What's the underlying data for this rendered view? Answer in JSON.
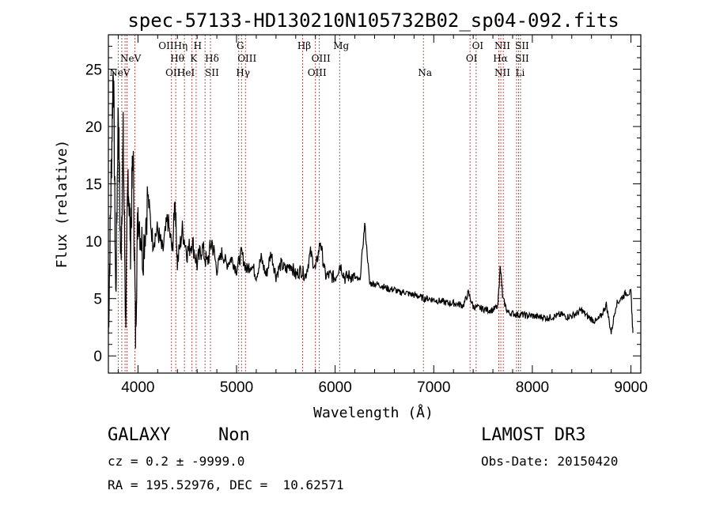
{
  "chart_data": {
    "type": "line",
    "title": "spec-57133-HD130210N105732B02_sp04-092.fits",
    "xlabel": "Wavelength (Å)",
    "ylabel": "Flux (relative)",
    "xlim": [
      3700,
      9100
    ],
    "ylim": [
      -1.5,
      28
    ],
    "xticks": [
      4000,
      5000,
      6000,
      7000,
      8000,
      9000
    ],
    "yticks": [
      0,
      5,
      10,
      15,
      20,
      25
    ],
    "grid": false,
    "series": [
      {
        "name": "flux",
        "x": [
          3700,
          3725,
          3750,
          3775,
          3800,
          3825,
          3850,
          3875,
          3900,
          3925,
          3950,
          3975,
          4000,
          4050,
          4100,
          4150,
          4200,
          4250,
          4300,
          4350,
          4375,
          4400,
          4450,
          4500,
          4550,
          4600,
          4650,
          4700,
          4750,
          4800,
          4850,
          4900,
          4950,
          5000,
          5050,
          5100,
          5150,
          5200,
          5250,
          5300,
          5350,
          5400,
          5450,
          5500,
          5550,
          5600,
          5650,
          5700,
          5750,
          5800,
          5850,
          5900,
          5950,
          6000,
          6050,
          6100,
          6150,
          6200,
          6250,
          6300,
          6350,
          6400,
          6450,
          6500,
          6550,
          6600,
          6650,
          6700,
          6750,
          6800,
          6850,
          6900,
          6950,
          7000,
          7050,
          7100,
          7150,
          7200,
          7250,
          7300,
          7350,
          7400,
          7450,
          7500,
          7550,
          7600,
          7650,
          7675,
          7700,
          7750,
          7800,
          7850,
          7900,
          7950,
          8000,
          8050,
          8100,
          8150,
          8200,
          8250,
          8300,
          8350,
          8400,
          8450,
          8500,
          8550,
          8600,
          8650,
          8700,
          8750,
          8800,
          8850,
          8900,
          8950,
          9000,
          9020
        ],
        "y": [
          2,
          14,
          26,
          5,
          22,
          8,
          19,
          3,
          16,
          10,
          18,
          2,
          13,
          9,
          14,
          10,
          11,
          9,
          12,
          9,
          14,
          8,
          11,
          9,
          10,
          8,
          9.5,
          8,
          10,
          7.5,
          9,
          8,
          8.5,
          7.5,
          9,
          7.5,
          8,
          7,
          8.5,
          7,
          9,
          7,
          8,
          7.5,
          8,
          7,
          7.5,
          7,
          9,
          7.5,
          10,
          7,
          7,
          6.8,
          8,
          6.8,
          7,
          6.8,
          6.5,
          11.5,
          6.3,
          6.3,
          6.2,
          6.0,
          5.8,
          5.8,
          5.5,
          5.6,
          5.4,
          5.3,
          5.2,
          5.0,
          5.0,
          4.9,
          4.8,
          4.7,
          4.6,
          4.6,
          4.5,
          4.4,
          5.5,
          4.3,
          4.2,
          4.1,
          4.0,
          4.0,
          4.3,
          8.0,
          5.0,
          3.8,
          3.7,
          3.6,
          3.6,
          3.5,
          3.5,
          3.4,
          3.4,
          3.3,
          3.4,
          3.5,
          3.6,
          3.4,
          3.5,
          3.7,
          4.0,
          3.5,
          3.2,
          3.0,
          3.5,
          4.5,
          2.0,
          4.5,
          5.0,
          5.5,
          5.5,
          2.0
        ]
      }
    ],
    "reference_lines": [
      {
        "wavelength": 3799,
        "label": ""
      },
      {
        "wavelength": 3836,
        "label": ""
      },
      {
        "wavelength": 3869,
        "label": "NeV"
      },
      {
        "wavelength": 3889,
        "label": ""
      },
      {
        "wavelength": 3970,
        "label": ""
      },
      {
        "wavelength": 4340,
        "label": "OII"
      },
      {
        "wavelength": 4383,
        "label": "Hθ"
      },
      {
        "wavelength": 4471,
        "label": "HeI"
      },
      {
        "wavelength": 4548,
        "label": "K"
      },
      {
        "wavelength": 4590,
        "label": "H"
      },
      {
        "wavelength": 4680,
        "label": "Hδ"
      },
      {
        "wavelength": 4735,
        "label": "SII"
      },
      {
        "wavelength": 5022,
        "label": "G"
      },
      {
        "wavelength": 5050,
        "label": "Hγ"
      },
      {
        "wavelength": 5090,
        "label": "OIII"
      },
      {
        "wavelength": 5670,
        "label": "Hβ"
      },
      {
        "wavelength": 5800,
        "label": "OIII"
      },
      {
        "wavelength": 5840,
        "label": "OIII"
      },
      {
        "wavelength": 6045,
        "label": "Mg"
      },
      {
        "wavelength": 6895,
        "label": "Na"
      },
      {
        "wavelength": 7368,
        "label": "OI"
      },
      {
        "wavelength": 7430,
        "label": "OI"
      },
      {
        "wavelength": 7660,
        "label": "Hα"
      },
      {
        "wavelength": 7680,
        "label": "NII"
      },
      {
        "wavelength": 7705,
        "label": "NII"
      },
      {
        "wavelength": 7840,
        "label": "SII"
      },
      {
        "wavelength": 7860,
        "label": "Li"
      },
      {
        "wavelength": 7880,
        "label": "SII"
      }
    ],
    "annotations_rows": [
      [
        {
          "wl": 4340,
          "text": "OIIHη"
        },
        {
          "wl": 4590,
          "text": "H"
        },
        {
          "wl": 5022,
          "text": "G"
        },
        {
          "wl": 5670,
          "text": "Hβ"
        },
        {
          "wl": 6045,
          "text": "Mg"
        },
        {
          "wl": 7430,
          "text": "OI"
        },
        {
          "wl": 7680,
          "text": "NII"
        },
        {
          "wl": 7880,
          "text": "SII"
        }
      ],
      [
        {
          "wl": 3910,
          "text": "NeV"
        },
        {
          "wl": 4383,
          "text": "Hθ"
        },
        {
          "wl": 4548,
          "text": "K"
        },
        {
          "wl": 4735,
          "text": "Hδ"
        },
        {
          "wl": 5090,
          "text": "OIII"
        },
        {
          "wl": 5840,
          "text": "OIII"
        },
        {
          "wl": 7368,
          "text": "OI"
        },
        {
          "wl": 7660,
          "text": "Hα"
        },
        {
          "wl": 7880,
          "text": "SII"
        }
      ],
      [
        {
          "wl": 3799,
          "text": "NeV"
        },
        {
          "wl": 4340,
          "text": "OII"
        },
        {
          "wl": 4471,
          "text": "HeI"
        },
        {
          "wl": 4735,
          "text": "SII"
        },
        {
          "wl": 5050,
          "text": "Hγ"
        },
        {
          "wl": 5800,
          "text": "OIII"
        },
        {
          "wl": 6895,
          "text": "Na"
        },
        {
          "wl": 7680,
          "text": "NII"
        },
        {
          "wl": 7860,
          "text": "Li"
        }
      ]
    ]
  },
  "info": {
    "class_label": "GALAXY",
    "subclass_label": "Non",
    "survey": "LAMOST DR3",
    "cz_text": "cz = 0.2 ± -9999.0",
    "obs_date": "Obs-Date: 20150420",
    "coords": "RA = 195.52976, DEC =  10.62571"
  }
}
